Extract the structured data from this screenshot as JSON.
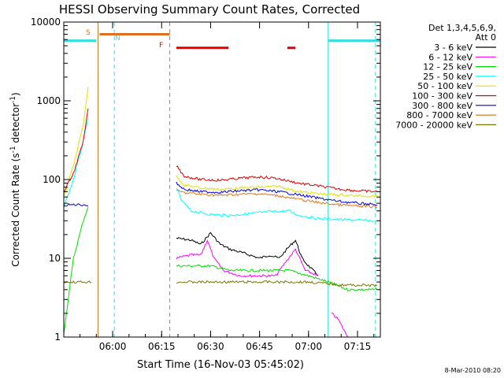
{
  "chart_data": {
    "type": "line",
    "title": "HESSI Observing Summary Count Rates, Corrected",
    "xlabel": "Start Time (16-Nov-03 05:45:02)",
    "ylabel": "Corrected Count Rate (s",
    "ylabel_sup1": "-1",
    "ylabel_mid": " detector",
    "ylabel_sup2": "-1",
    "ylabel_end": ")",
    "y_scale": "log",
    "ylim": [
      1,
      10000
    ],
    "xlim": [
      "05:45:02",
      "07:22:00"
    ],
    "x_ticks": [
      "06:00",
      "06:15",
      "06:30",
      "06:45",
      "07:00",
      "07:15"
    ],
    "y_ticks": [
      "1",
      "10",
      "100",
      "1000",
      "10000"
    ],
    "legend_title": "Det 1,3,4,5,6,9,",
    "legend_subtitle": "Att 0",
    "legend_placement": "right",
    "footer_date": "8-Mar-2010 08:20",
    "markers": {
      "s_label": "S",
      "n_label": "N",
      "f_label": "F"
    },
    "vertical_lines": [
      {
        "time": "05:55:30",
        "color": "#c07818",
        "style": "solid"
      },
      {
        "time": "06:00:30",
        "color": "#30e0e0",
        "style": "dashed"
      },
      {
        "time": "06:17:30",
        "color": "#e07020",
        "style": "dashed"
      },
      {
        "time": "07:06:00",
        "color": "#30e0e0",
        "style": "solid"
      },
      {
        "time": "07:20:30",
        "color": "#30e0e0",
        "style": "dashed"
      }
    ],
    "flag_bars": [
      {
        "t0": "05:45:02",
        "t1": "05:55:00",
        "y": 5800,
        "color": "#30e0e0"
      },
      {
        "t0": "05:56:00",
        "t1": "06:17:30",
        "y": 7000,
        "color": "#e07020"
      },
      {
        "t0": "06:19:30",
        "t1": "06:35:30",
        "y": 4700,
        "color": "#e00000"
      },
      {
        "t0": "06:53:30",
        "t1": "06:56:00",
        "y": 4700,
        "color": "#e00000"
      },
      {
        "t0": "07:06:00",
        "t1": "07:22:00",
        "y": 5800,
        "color": "#30e0e0"
      }
    ],
    "series": [
      {
        "name": "3 - 6 keV",
        "color": "#000000",
        "segments": [
          [
            [
              "06:19:30",
              18
            ],
            [
              "06:24",
              17
            ],
            [
              "06:27",
              15
            ],
            [
              "06:30",
              21
            ],
            [
              "06:33",
              15
            ],
            [
              "06:36",
              13
            ],
            [
              "06:39",
              12
            ],
            [
              "06:42",
              11
            ],
            [
              "06:45",
              10
            ],
            [
              "06:48",
              11
            ],
            [
              "06:51",
              10
            ],
            [
              "06:54",
              14
            ],
            [
              "06:56",
              17
            ],
            [
              "06:58",
              10
            ],
            [
              "07:00",
              8
            ],
            [
              "07:03",
              6
            ]
          ]
        ]
      },
      {
        "name": "6 - 12 keV",
        "color": "#ff00ff",
        "segments": [
          [
            [
              "06:19:30",
              10
            ],
            [
              "06:24",
              11
            ],
            [
              "06:27",
              11
            ],
            [
              "06:29",
              17
            ],
            [
              "06:31",
              10
            ],
            [
              "06:34",
              7
            ],
            [
              "06:39",
              6
            ],
            [
              "06:45",
              6
            ],
            [
              "06:50",
              6
            ],
            [
              "06:53",
              9
            ],
            [
              "06:56",
              13
            ],
            [
              "06:59",
              7
            ],
            [
              "07:03",
              6
            ]
          ],
          [
            [
              "07:07",
              2
            ],
            [
              "07:09",
              1.7
            ],
            [
              "07:12",
              1
            ]
          ]
        ]
      },
      {
        "name": "12 - 25 keV",
        "color": "#00e000",
        "segments": [
          [
            [
              "05:45:02",
              1.1
            ],
            [
              "05:48",
              10
            ],
            [
              "05:51",
              30
            ],
            [
              "05:52:30",
              45
            ]
          ],
          [
            [
              "06:19:30",
              8
            ],
            [
              "06:24",
              8
            ],
            [
              "06:30",
              8
            ],
            [
              "06:36",
              7
            ],
            [
              "06:42",
              7
            ],
            [
              "06:48",
              7
            ],
            [
              "06:54",
              7
            ],
            [
              "07:00",
              6
            ],
            [
              "07:06",
              5
            ],
            [
              "07:12",
              4
            ],
            [
              "07:21",
              4
            ]
          ]
        ]
      },
      {
        "name": "25 - 50 keV",
        "color": "#00ffff",
        "segments": [
          [
            [
              "05:45:02",
              45
            ],
            [
              "05:48",
              100
            ],
            [
              "05:51",
              300
            ],
            [
              "05:52:30",
              600
            ]
          ],
          [
            [
              "06:19:30",
              80
            ],
            [
              "06:21",
              55
            ],
            [
              "06:24",
              40
            ],
            [
              "06:30",
              36
            ],
            [
              "06:36",
              35
            ],
            [
              "06:42",
              37
            ],
            [
              "06:48",
              39
            ],
            [
              "06:54",
              40
            ],
            [
              "06:57",
              35
            ],
            [
              "07:03",
              32
            ],
            [
              "07:10",
              31
            ],
            [
              "07:20",
              30
            ]
          ]
        ]
      },
      {
        "name": "50 - 100 keV",
        "color": "#e0e000",
        "segments": [
          [
            [
              "05:45:02",
              60
            ],
            [
              "05:48",
              150
            ],
            [
              "05:51",
              500
            ],
            [
              "05:52:30",
              1500
            ]
          ],
          [
            [
              "06:19:30",
              110
            ],
            [
              "06:22",
              85
            ],
            [
              "06:27",
              78
            ],
            [
              "06:33",
              75
            ],
            [
              "06:39",
              78
            ],
            [
              "06:45",
              80
            ],
            [
              "06:51",
              82
            ],
            [
              "06:57",
              70
            ],
            [
              "07:03",
              66
            ],
            [
              "07:09",
              64
            ],
            [
              "07:15",
              62
            ],
            [
              "07:21",
              62
            ]
          ]
        ]
      },
      {
        "name": "100 - 300 keV",
        "color": "#e00000",
        "segments": [
          [
            [
              "05:45:02",
              70
            ],
            [
              "05:48",
              120
            ],
            [
              "05:51",
              300
            ],
            [
              "05:52:30",
              800
            ]
          ],
          [
            [
              "06:19:30",
              150
            ],
            [
              "06:22",
              110
            ],
            [
              "06:27",
              100
            ],
            [
              "06:33",
              98
            ],
            [
              "06:39",
              104
            ],
            [
              "06:45",
              108
            ],
            [
              "06:50",
              104
            ],
            [
              "06:57",
              90
            ],
            [
              "07:03",
              83
            ],
            [
              "07:09",
              76
            ],
            [
              "07:15",
              72
            ],
            [
              "07:21",
              70
            ]
          ]
        ]
      },
      {
        "name": "300 - 800 keV",
        "color": "#0000e0",
        "segments": [
          [
            [
              "05:45:02",
              47
            ],
            [
              "05:48",
              48
            ],
            [
              "05:51",
              48
            ],
            [
              "05:52:30",
              47
            ]
          ],
          [
            [
              "06:19:30",
              90
            ],
            [
              "06:22",
              75
            ],
            [
              "06:27",
              70
            ],
            [
              "06:33",
              69
            ],
            [
              "06:39",
              72
            ],
            [
              "06:45",
              74
            ],
            [
              "06:51",
              70
            ],
            [
              "06:57",
              64
            ],
            [
              "07:03",
              58
            ],
            [
              "07:09",
              53
            ],
            [
              "07:15",
              50
            ],
            [
              "07:21",
              48
            ]
          ]
        ]
      },
      {
        "name": "800 - 7000 keV",
        "color": "#e07820",
        "segments": [
          [
            [
              "06:19:30",
              72
            ],
            [
              "06:22",
              68
            ],
            [
              "06:27",
              65
            ],
            [
              "06:33",
              63
            ],
            [
              "06:39",
              65
            ],
            [
              "06:45",
              66
            ],
            [
              "06:51",
              62
            ],
            [
              "06:57",
              56
            ],
            [
              "07:03",
              51
            ],
            [
              "07:09",
              48
            ],
            [
              "07:15",
              46
            ],
            [
              "07:21",
              45
            ]
          ]
        ]
      },
      {
        "name": "7000 - 20000 keV",
        "color": "#787800",
        "segments": [
          [
            [
              "05:45:02",
              5
            ],
            [
              "05:48",
              5
            ],
            [
              "05:51",
              5
            ],
            [
              "05:53:30",
              5
            ]
          ],
          [
            [
              "06:19:30",
              5
            ],
            [
              "06:30",
              5
            ],
            [
              "06:40",
              5
            ],
            [
              "06:50",
              5
            ],
            [
              "07:00",
              5
            ],
            [
              "07:10",
              4.6
            ],
            [
              "07:21",
              4.5
            ]
          ]
        ]
      }
    ]
  }
}
